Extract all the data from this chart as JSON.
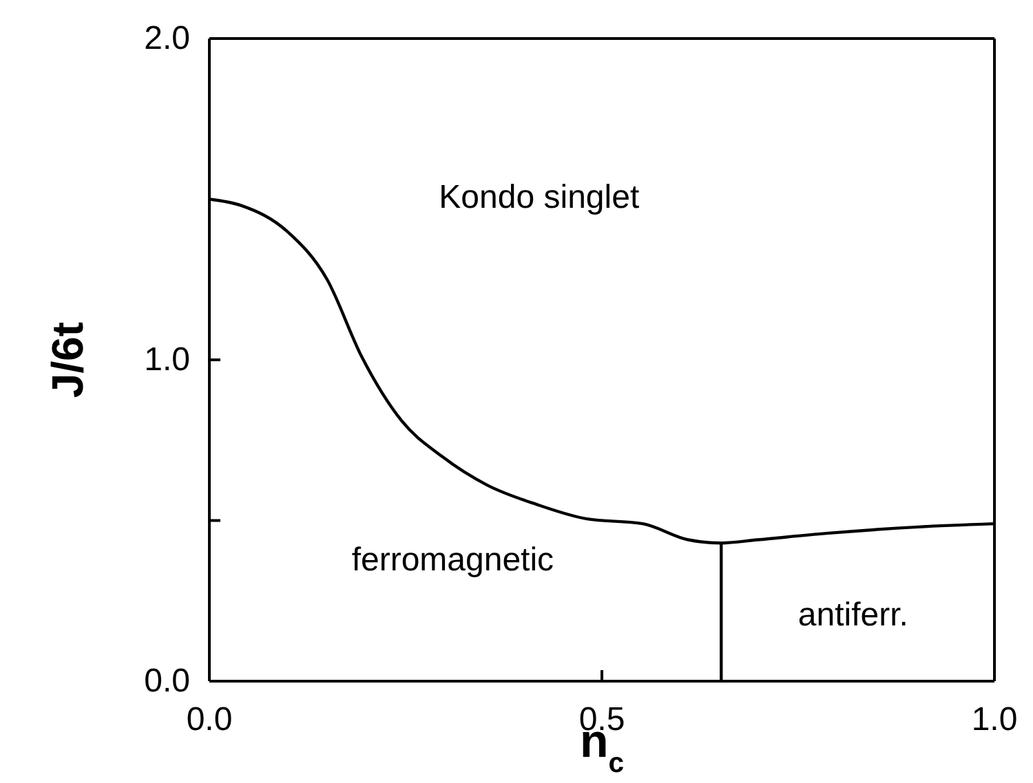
{
  "chart_data": {
    "type": "line",
    "xlabel": "n$_{c}$",
    "ylabel": "J/6t",
    "xlim": [
      0,
      1
    ],
    "ylim": [
      0,
      2
    ],
    "xticks": [
      {
        "value": 0,
        "label": "0.0"
      },
      {
        "value": 0.5,
        "label": "0.5"
      },
      {
        "value": 1,
        "label": "1.0"
      }
    ],
    "yticks": [
      {
        "value": 0,
        "label": "0.0"
      },
      {
        "value": 0.5,
        "label": null
      },
      {
        "value": 1,
        "label": "1.0"
      },
      {
        "value": 2,
        "label": "2.0"
      }
    ],
    "series": [
      {
        "color": "#000000",
        "x": [
          0,
          0.041,
          0.099,
          0.15,
          0.194,
          0.245,
          0.296,
          0.354,
          0.417,
          0.481,
          0.552,
          0.61,
          0.652,
          0.698,
          0.786,
          0.903,
          1.0
        ],
        "values": [
          1.5,
          1.48,
          1.4,
          1.25,
          1.01,
          0.81,
          0.7,
          0.61,
          0.55,
          0.505,
          0.49,
          0.44,
          0.43,
          0.44,
          0.46,
          0.48,
          0.49
        ]
      },
      {
        "color": "#000000",
        "x": [
          0.652,
          0.652
        ],
        "values": [
          0,
          0.43
        ]
      }
    ],
    "annotations": [
      "Kondo singlet",
      "ferromagnetic",
      "antiferr."
    ],
    "marker": "none",
    "line_style": "solid"
  }
}
